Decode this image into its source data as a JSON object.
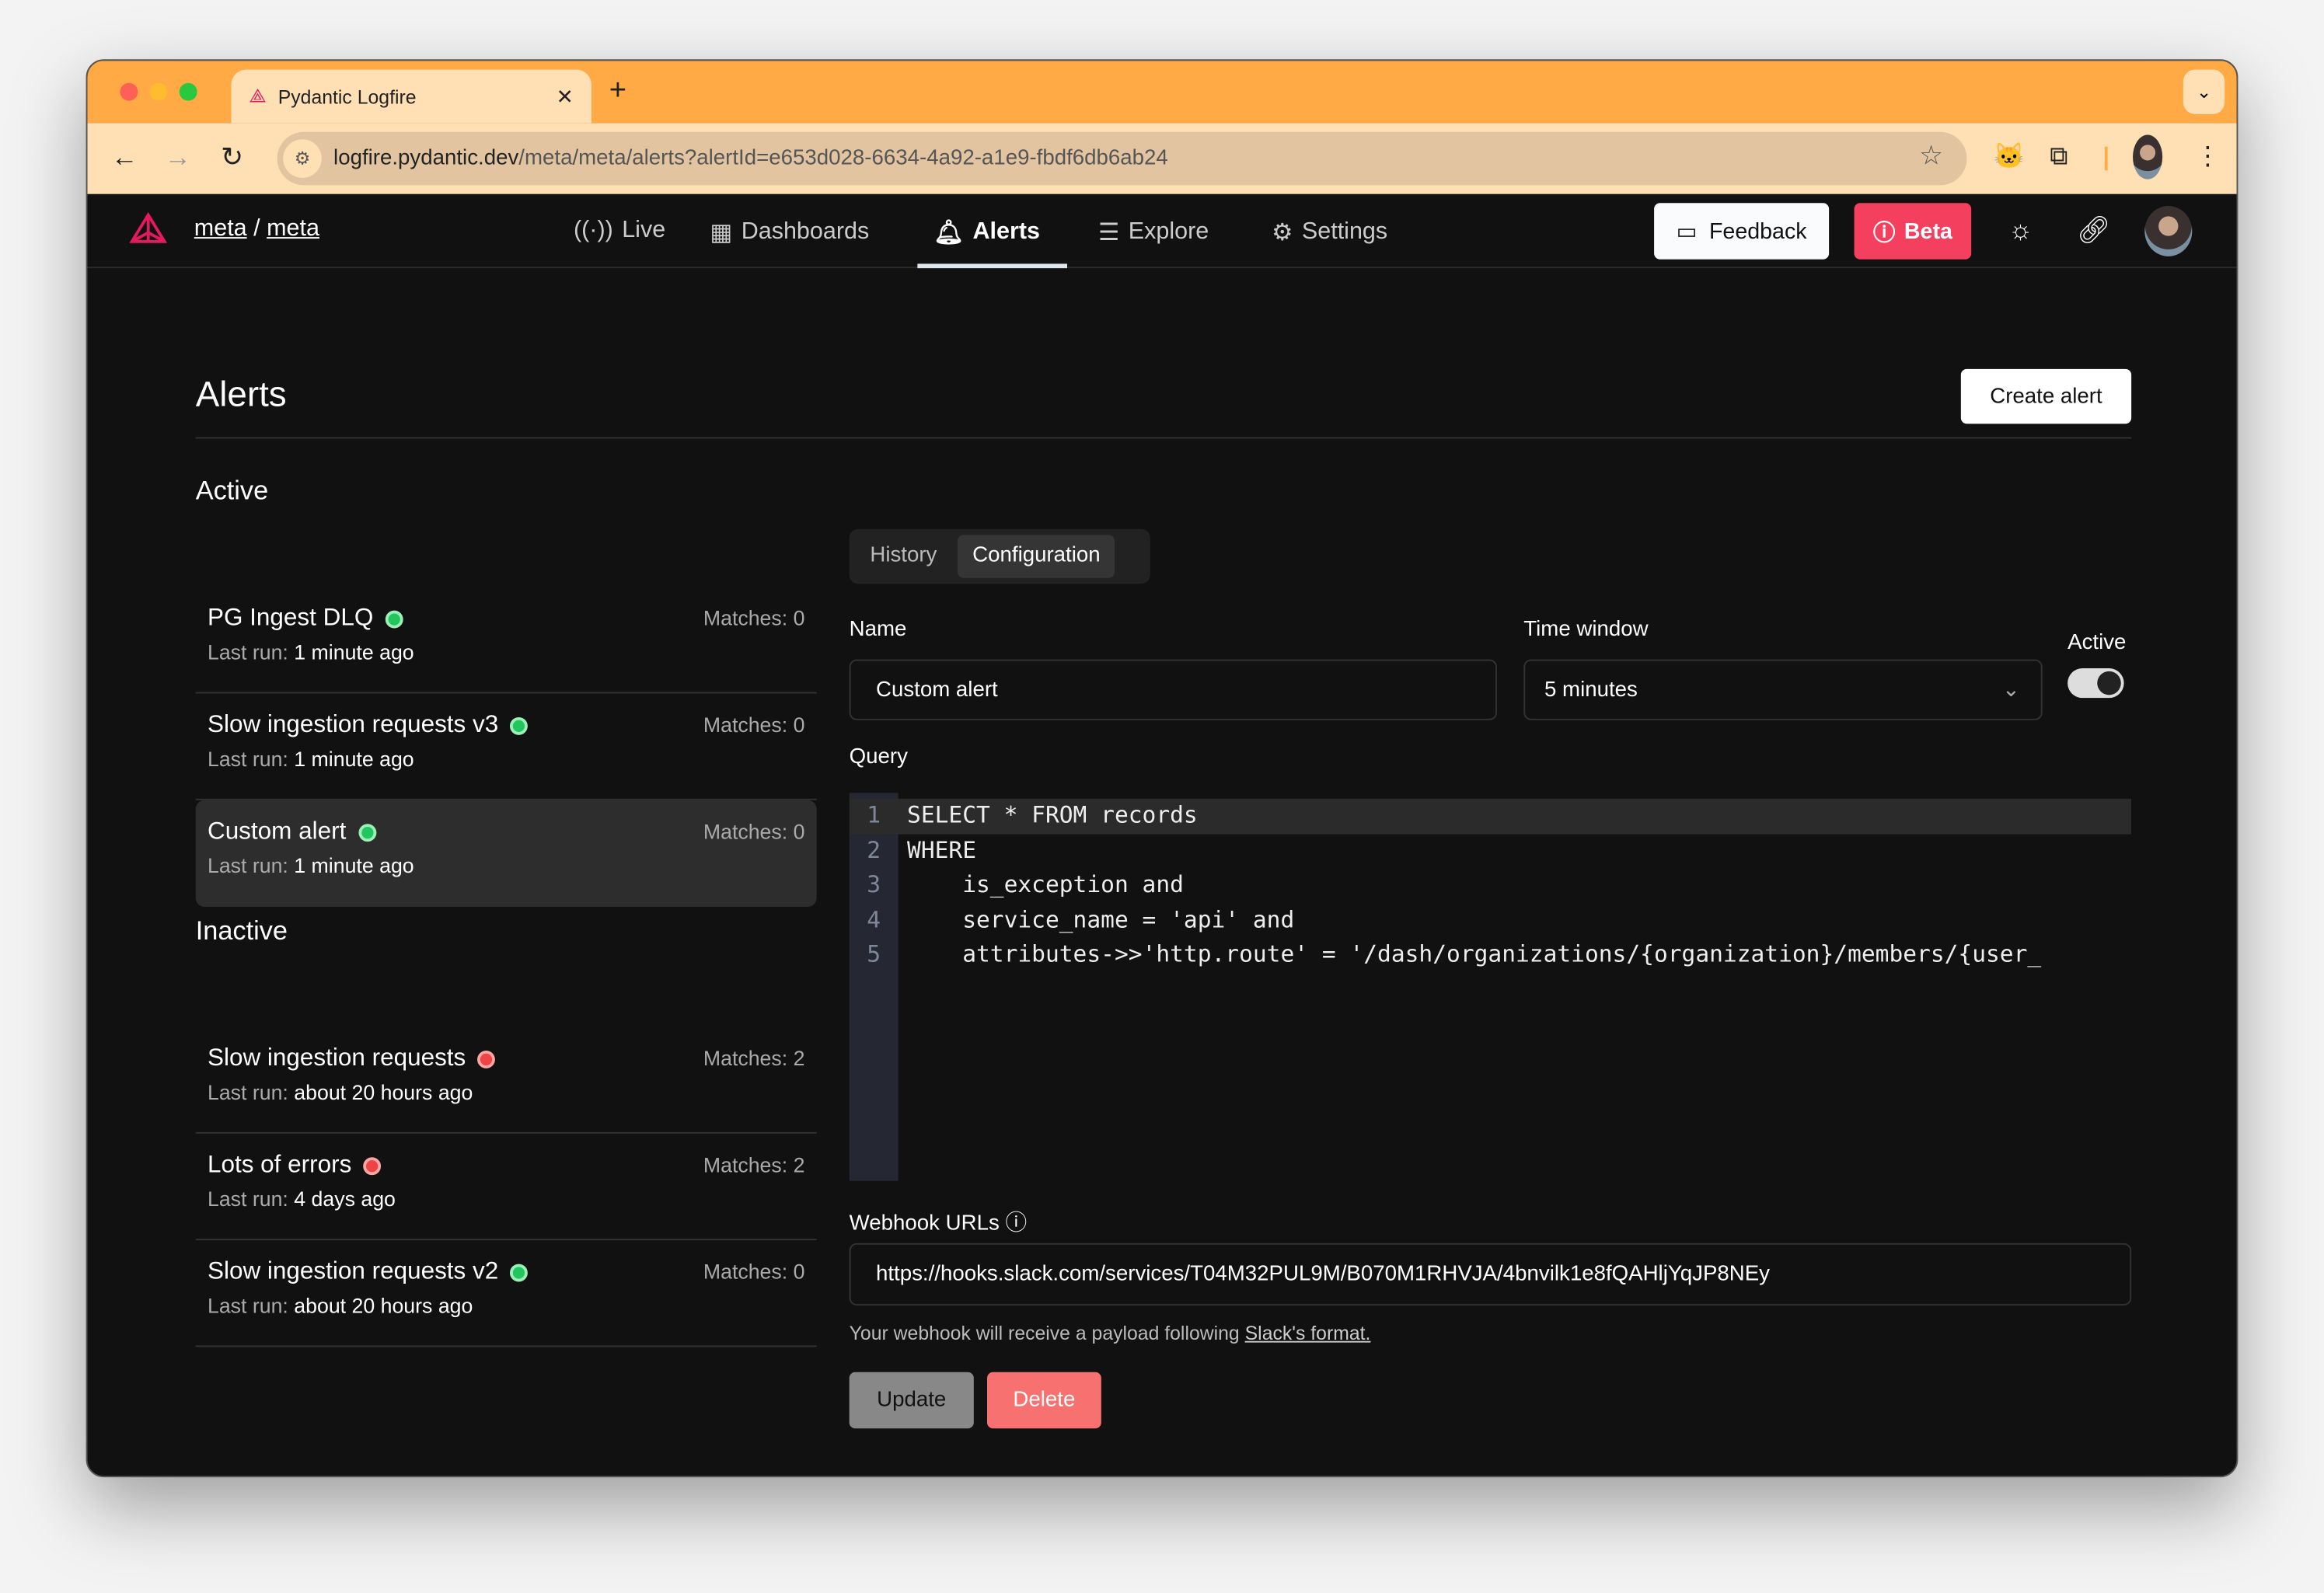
{
  "browser": {
    "tab_title": "Pydantic Logfire",
    "url_host": "logfire.pydantic.dev",
    "url_path": "/meta/meta/alerts?alertId=e653d028-6634-4a92-a1e9-fbdf6db6ab24"
  },
  "header": {
    "org": "meta",
    "project": "meta",
    "separator": "/",
    "nav": [
      {
        "label": "Live",
        "icon": "broadcast-icon"
      },
      {
        "label": "Dashboards",
        "icon": "dashboard-icon"
      },
      {
        "label": "Alerts",
        "icon": "bell-icon",
        "active": true
      },
      {
        "label": "Explore",
        "icon": "explore-icon"
      },
      {
        "label": "Settings",
        "icon": "gear-icon"
      }
    ],
    "feedback": "Feedback",
    "beta": "Beta"
  },
  "page": {
    "title": "Alerts",
    "create_label": "Create alert",
    "active_heading": "Active",
    "inactive_heading": "Inactive",
    "last_run_prefix": "Last run:",
    "active": [
      {
        "name": "PG Ingest DLQ",
        "last_run": "1 minute ago",
        "matches": "Matches: 0",
        "status": "green"
      },
      {
        "name": "Slow ingestion requests v3",
        "last_run": "1 minute ago",
        "matches": "Matches: 0",
        "status": "green"
      },
      {
        "name": "Custom alert",
        "last_run": "1 minute ago",
        "matches": "Matches: 0",
        "status": "green",
        "selected": true
      }
    ],
    "inactive": [
      {
        "name": "Slow ingestion requests",
        "last_run": "about 20 hours ago",
        "matches": "Matches: 2",
        "status": "red"
      },
      {
        "name": "Lots of errors",
        "last_run": "4 days ago",
        "matches": "Matches: 2",
        "status": "red"
      },
      {
        "name": "Slow ingestion requests v2",
        "last_run": "about 20 hours ago",
        "matches": "Matches: 0",
        "status": "green"
      }
    ]
  },
  "config": {
    "tabs": [
      "History",
      "Configuration"
    ],
    "active_tab": "Configuration",
    "name_label": "Name",
    "name_value": "Custom alert",
    "time_label": "Time window",
    "time_value": "5 minutes",
    "active_label": "Active",
    "active_on": true,
    "query_label": "Query",
    "query_lines": [
      "SELECT * FROM records",
      "WHERE",
      "    is_exception and",
      "    service_name = 'api' and",
      "    attributes->>'http.route' = '/dash/organizations/{organization}/members/{user_"
    ],
    "webhook_label": "Webhook URLs",
    "webhook_value": "https://hooks.slack.com/services/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",
    "help_text": "Your webhook will receive a payload following",
    "help_link": "Slack's format.",
    "update_label": "Update",
    "delete_label": "Delete"
  },
  "colors": {
    "status_green": "#22c55e",
    "status_red": "#ef4444",
    "beta": "#f43f5e",
    "delete": "#f87171",
    "chrome": "#FFAA44"
  }
}
